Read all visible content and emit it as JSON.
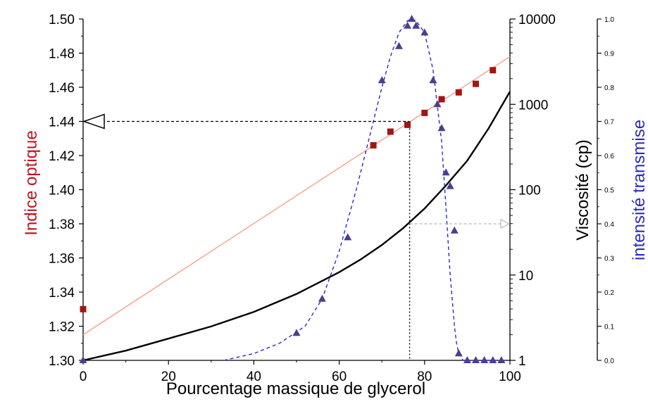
{
  "chart_data": {
    "type": "line",
    "xlabel": "Pourcentage massique de glycerol",
    "ylabel_left": "Indice optique",
    "ylabel_right1": "Viscosité (cp)",
    "ylabel_right2": "intensité transmise",
    "x_ticks": [
      "0",
      "20",
      "40",
      "60",
      "80",
      "100"
    ],
    "y_left_ticks": [
      "1.30",
      "1.32",
      "1.34",
      "1.36",
      "1.38",
      "1.40",
      "1.42",
      "1.44",
      "1.46",
      "1.48",
      "1.50"
    ],
    "y_right1_ticks": [
      "1",
      "10",
      "100",
      "1000",
      "10000"
    ],
    "y_right2_ticks": [
      "0.0",
      "0.1",
      "0.2",
      "0.3",
      "0.4",
      "0.5",
      "0.6",
      "0.7",
      "0.8",
      "0.9",
      "1.0"
    ],
    "xlim": [
      0,
      100
    ],
    "ylim_left": [
      1.3,
      1.5
    ],
    "ylim_right1": [
      1,
      10000
    ],
    "ylim_right1_scale": "log",
    "ylim_right2": [
      0.0,
      1.0
    ],
    "colors": {
      "refractive": "#a31515",
      "refractive_fit": "#f2a38c",
      "viscosity": "#000000",
      "transmission": "#2b2bbd",
      "transmission_marker": "#4a3f8f",
      "axis_left_label": "#c0141f",
      "axis_right2_label": "#2b2bbd"
    },
    "series": [
      {
        "axis": "left",
        "marker": "square",
        "x": [
          0,
          68,
          72,
          76,
          80,
          84,
          88,
          92,
          96
        ],
        "y": [
          1.33,
          1.426,
          1.434,
          1.438,
          1.445,
          1.453,
          1.457,
          1.462,
          1.47
        ]
      },
      {
        "axis": "left",
        "style": "line-fit",
        "x": [
          0,
          100
        ],
        "y": [
          1.315,
          1.478
        ]
      },
      {
        "axis": "right1",
        "style": "line",
        "x": [
          0,
          10,
          20,
          30,
          40,
          50,
          60,
          65,
          70,
          75,
          80,
          85,
          90,
          95,
          100
        ],
        "y": [
          1.0,
          1.3,
          1.8,
          2.5,
          3.7,
          6.0,
          10.8,
          15.2,
          22.5,
          35.5,
          60.1,
          112,
          219,
          523,
          1410
        ]
      },
      {
        "axis": "right2",
        "marker": "triangle",
        "x": [
          0,
          50,
          56,
          62,
          70,
          74,
          76,
          77,
          78,
          80,
          82,
          83,
          84,
          85,
          86,
          87,
          88,
          90,
          92,
          94,
          96,
          98
        ],
        "y": [
          0.0,
          0.08,
          0.18,
          0.36,
          0.82,
          0.92,
          0.98,
          1.0,
          0.98,
          0.96,
          0.82,
          0.75,
          0.68,
          0.55,
          0.51,
          0.38,
          0.02,
          0.0,
          0.0,
          0.0,
          0.0,
          0.0
        ]
      },
      {
        "axis": "right2",
        "style": "dashed-fit",
        "x": [
          33,
          40,
          46,
          52,
          56,
          60,
          64,
          68,
          70,
          72,
          74,
          76,
          77,
          78,
          80,
          82,
          84,
          85,
          86,
          87,
          87.5,
          88,
          89,
          90,
          100
        ],
        "y": [
          0.0,
          0.02,
          0.05,
          0.1,
          0.18,
          0.32,
          0.5,
          0.7,
          0.8,
          0.89,
          0.96,
          0.995,
          1.0,
          0.995,
          0.96,
          0.85,
          0.64,
          0.45,
          0.25,
          0.1,
          0.05,
          0.02,
          0.0,
          0.0,
          0.0
        ]
      }
    ],
    "annotations": {
      "cross_x": 76.5,
      "cross_y_left": 1.44,
      "cross_y_right2": 0.4
    }
  }
}
